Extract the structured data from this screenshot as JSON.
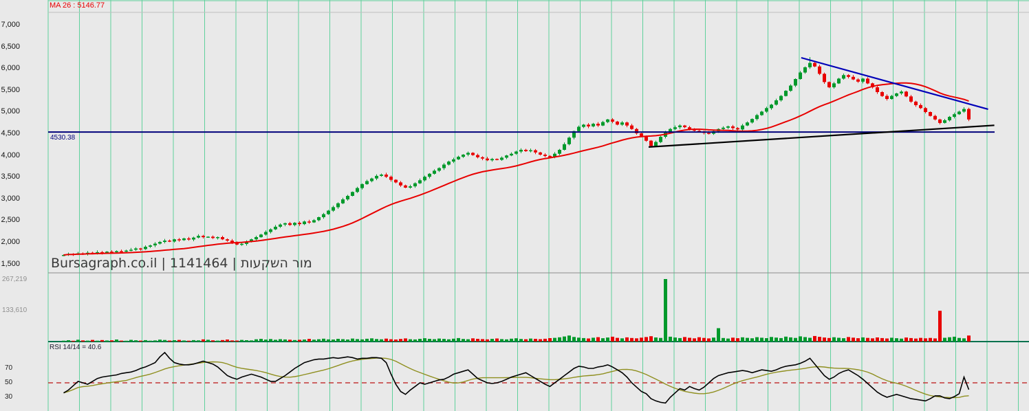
{
  "app": {
    "watermark": "Bursagraph.co.il | 1141464 | מור השקעות"
  },
  "price_panel": {
    "ma_label": "MA 26 : 5146.77",
    "hline_label": "4530.38",
    "y_ticks": [
      "7,000",
      "6,500",
      "6,000",
      "5,500",
      "5,000",
      "4,500",
      "4,000",
      "3,500",
      "3,000",
      "2,500",
      "2,000",
      "1,500"
    ]
  },
  "volume_panel": {
    "y_ticks": [
      "267,219",
      "133,610"
    ]
  },
  "rsi_panel": {
    "label": "RSI 14/14 = 40.6",
    "y_ticks": [
      "70",
      "50",
      "30"
    ]
  },
  "colors": {
    "background": "#E9E9E9",
    "grid": "#5FD19C",
    "candle_up": "#00992B",
    "candle_down": "#E80000",
    "ma_line": "#E80000",
    "hline": "#00007A",
    "separator": "#8C8C8C",
    "baseline": "#00724E",
    "rsi_line": "#000000",
    "rsi_signal": "#8F8F1F",
    "rsi_mid": "#C23535"
  },
  "chart_data": {
    "type": "candlestick",
    "title": "Bursagraph security 1141464 - מור השקעות - weekly chart with MA26, volume and RSI",
    "ma_period": 26,
    "ma_last_value": 5146.77,
    "rsi_last_value": 40.6,
    "hline_value": 4530.38,
    "price_axis_ticks": [
      7000,
      6500,
      6000,
      5500,
      5000,
      4500,
      4000,
      3500,
      3000,
      2500,
      2000,
      1500
    ],
    "volume_axis_ticks": [
      267219,
      133610
    ],
    "rsi_axis_ticks": [
      70,
      50,
      30
    ],
    "ylim": [
      1200,
      7300
    ],
    "grid": "vertical-only",
    "closes": [
      1700,
      1725,
      1712,
      1738,
      1726,
      1752,
      1740,
      1764,
      1750,
      1776,
      1762,
      1788,
      1775,
      1800,
      1820,
      1850,
      1835,
      1890,
      1920,
      1960,
      2000,
      2030,
      2010,
      2060,
      2040,
      2080,
      2055,
      2100,
      2140,
      2110,
      2120,
      2090,
      2110,
      2060,
      2030,
      1990,
      1940,
      1955,
      2010,
      2060,
      2110,
      2170,
      2230,
      2290,
      2350,
      2400,
      2430,
      2390,
      2440,
      2410,
      2470,
      2450,
      2500,
      2570,
      2640,
      2720,
      2800,
      2890,
      2980,
      3060,
      3150,
      3240,
      3330,
      3400,
      3460,
      3520,
      3550,
      3500,
      3430,
      3370,
      3300,
      3250,
      3280,
      3350,
      3420,
      3500,
      3570,
      3640,
      3700,
      3780,
      3850,
      3900,
      3960,
      4010,
      4050,
      4000,
      3950,
      3920,
      3880,
      3910,
      3890,
      3940,
      3990,
      4030,
      4080,
      4120,
      4090,
      4110,
      4060,
      4010,
      3980,
      3950,
      4030,
      4120,
      4250,
      4400,
      4550,
      4650,
      4700,
      4660,
      4720,
      4680,
      4760,
      4820,
      4770,
      4700,
      4750,
      4680,
      4600,
      4500,
      4420,
      4330,
      4210,
      4300,
      4420,
      4520,
      4600,
      4640,
      4680,
      4640,
      4600,
      4560,
      4540,
      4510,
      4490,
      4550,
      4600,
      4630,
      4660,
      4620,
      4590,
      4680,
      4750,
      4830,
      4920,
      5000,
      5080,
      5160,
      5260,
      5360,
      5480,
      5600,
      5750,
      5900,
      6020,
      6120,
      6040,
      5870,
      5680,
      5560,
      5650,
      5760,
      5840,
      5800,
      5740,
      5690,
      5760,
      5650,
      5560,
      5450,
      5360,
      5290,
      5360,
      5420,
      5460,
      5350,
      5230,
      5150,
      5080,
      4990,
      4900,
      4820,
      4740,
      4800,
      4880,
      4940,
      5000,
      5060,
      4820
    ],
    "volumes": [
      4000,
      6000,
      3500,
      8000,
      5000,
      4200,
      7000,
      3800,
      6500,
      4800,
      5200,
      9000,
      4100,
      3600,
      7500,
      5600,
      4300,
      6200,
      3900,
      5100,
      8200,
      6800,
      4500,
      5900,
      7200,
      4600,
      3800,
      6100,
      5200,
      9500,
      7800,
      5400,
      4200,
      6600,
      8800,
      5100,
      4400,
      7200,
      6000,
      5000,
      9800,
      12000,
      8500,
      11000,
      7600,
      10500,
      9200,
      8000,
      6500,
      7800,
      9000,
      11500,
      8400,
      10200,
      12500,
      9600,
      8800,
      11800,
      10400,
      9000,
      13000,
      10800,
      9500,
      12200,
      14000,
      11000,
      9800,
      12800,
      10200,
      8900,
      11400,
      13600,
      10000,
      9200,
      12000,
      14500,
      11800,
      10400,
      13200,
      11600,
      9800,
      12400,
      15000,
      11200,
      10000,
      13800,
      12000,
      10600,
      9400,
      11800,
      13400,
      10800,
      9600,
      12600,
      14200,
      11400,
      10200,
      13000,
      11800,
      10400,
      12200,
      14800,
      16000,
      18500,
      22000,
      26000,
      20000,
      17000,
      15000,
      13500,
      16500,
      19000,
      14500,
      17500,
      21000,
      16000,
      14000,
      18000,
      15500,
      13800,
      16800,
      19500,
      23000,
      17800,
      15600,
      270000,
      21000,
      17500,
      15000,
      19500,
      16200,
      14000,
      18800,
      15800,
      13600,
      17200,
      58000,
      15400,
      13200,
      16800,
      14600,
      18400,
      16000,
      14200,
      19000,
      16600,
      14800,
      20000,
      17200,
      15200,
      21500,
      18000,
      15800,
      22500,
      19200,
      16400,
      24000,
      20500,
      17600,
      15400,
      18800,
      16200,
      14400,
      19600,
      17000,
      14600,
      18200,
      15600,
      13800,
      17800,
      15200,
      13400,
      16600,
      14400,
      12800,
      17400,
      15000,
      13200,
      16000,
      14000,
      15800,
      13600,
      133000,
      16400,
      18600,
      21000,
      15600,
      13800,
      26000
    ],
    "rsi": [
      36,
      40,
      46,
      52,
      50,
      48,
      52,
      56,
      58,
      59,
      60,
      61,
      63,
      64,
      65,
      67,
      70,
      72,
      75,
      78,
      86,
      92,
      84,
      78,
      76,
      75,
      75,
      76,
      78,
      80,
      78,
      76,
      72,
      66,
      60,
      57,
      55,
      58,
      60,
      62,
      60,
      58,
      55,
      52,
      52,
      56,
      60,
      65,
      70,
      74,
      78,
      80,
      82,
      83,
      83,
      84,
      85,
      84,
      85,
      86,
      85,
      83,
      84,
      84,
      85,
      85,
      84,
      78,
      62,
      48,
      38,
      34,
      40,
      45,
      50,
      48,
      50,
      52,
      54,
      55,
      58,
      62,
      64,
      66,
      68,
      62,
      56,
      53,
      50,
      49,
      50,
      52,
      55,
      58,
      60,
      62,
      64,
      60,
      56,
      52,
      48,
      45,
      50,
      55,
      60,
      65,
      70,
      73,
      72,
      70,
      70,
      72,
      73,
      75,
      72,
      68,
      64,
      58,
      50,
      44,
      38,
      35,
      28,
      25,
      23,
      22,
      30,
      36,
      42,
      40,
      45,
      42,
      40,
      44,
      50,
      56,
      60,
      62,
      64,
      65,
      66,
      67,
      66,
      64,
      66,
      68,
      67,
      66,
      68,
      71,
      73,
      74,
      75,
      77,
      80,
      84,
      76,
      68,
      60,
      55,
      58,
      63,
      66,
      68,
      64,
      60,
      55,
      49,
      43,
      37,
      33,
      30,
      32,
      34,
      32,
      30,
      28,
      27,
      26,
      25,
      28,
      32,
      32,
      29,
      28,
      31,
      35,
      58,
      40.6
    ],
    "trendlines": [
      {
        "name": "resistance",
        "color": "#0000B8",
        "from_index": 153.2,
        "from_price": 6240,
        "to_index": 192,
        "to_price": 5055
      },
      {
        "name": "support",
        "color": "#000000",
        "from_index": 121.5,
        "from_price": 4185,
        "to_index": 193.3,
        "to_price": 4685
      }
    ]
  }
}
